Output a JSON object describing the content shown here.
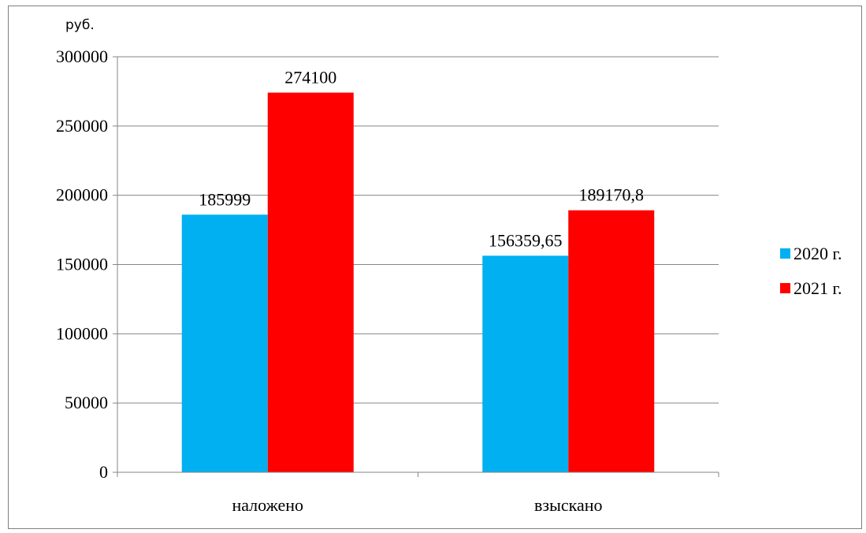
{
  "chart_data": {
    "type": "bar",
    "ylabel": "руб.",
    "categories": [
      "наложено",
      "взыскано"
    ],
    "series": [
      {
        "name": "2020 г.",
        "color": "#00B0F0",
        "values": [
          185999,
          156359.65
        ],
        "labels": [
          "185999",
          "156359,65"
        ]
      },
      {
        "name": "2021 г.",
        "color": "#FF0000",
        "values": [
          274100,
          189170.8
        ],
        "labels": [
          "274100",
          "189170,8"
        ]
      }
    ],
    "ylim": [
      0,
      300000
    ],
    "yticks": [
      0,
      50000,
      100000,
      150000,
      200000,
      250000,
      300000
    ],
    "ytick_labels": [
      "0",
      "50000",
      "100000",
      "150000",
      "200000",
      "250000",
      "300000"
    ],
    "grid": true,
    "legend_position": "right"
  }
}
